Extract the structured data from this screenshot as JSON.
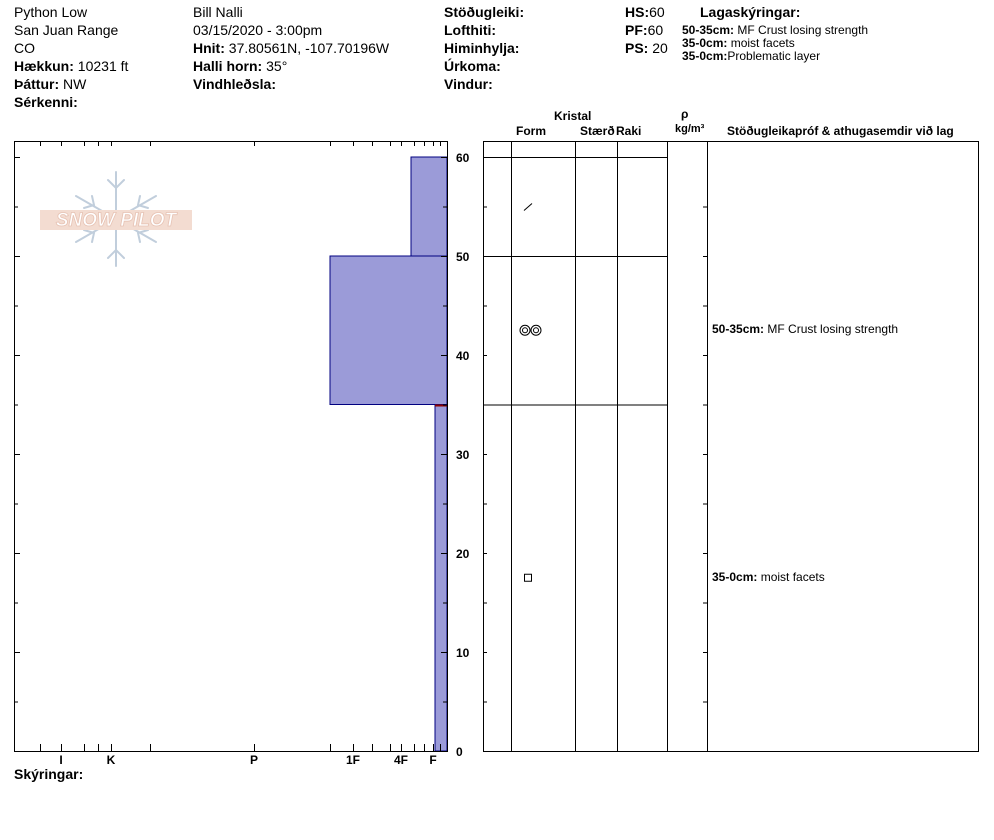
{
  "header": {
    "site_name": "Python Low",
    "range": "San Juan Range",
    "state": "CO",
    "elevation_label": "Hækkun:",
    "elevation_value": "10231 ft",
    "aspect_label": "Þáttur:",
    "aspect_value": "NW",
    "features_label": "Sérkenni:",
    "observer": "Bill Nalli",
    "datetime": "03/15/2020 - 3:00pm",
    "coords_label": "Hnit:",
    "coords_value": "37.80561N, -107.70196W",
    "slope_label": "Halli horn:",
    "slope_value": "35°",
    "wind_loading_label": "Vindhleðsla:",
    "stability_label": "Stöðugleiki:",
    "air_temp_label": "Lofthiti:",
    "sky_label": "Himinhylja:",
    "precip_label": "Úrkoma:",
    "wind_label": "Vindur:",
    "hs_label": "HS:",
    "hs_value": "60",
    "pf_label": "PF:",
    "pf_value": "60",
    "ps_label": "PS:",
    "ps_value": "20",
    "layer_notes_title": "Lagaskýringar:",
    "layer_notes": [
      {
        "range": "50-35cm:",
        "text": "MF Crust losing strength"
      },
      {
        "range": "35-0cm:",
        "text": "moist facets"
      },
      {
        "range": "35-0cm:",
        "text": "Problematic layer"
      }
    ]
  },
  "logo": {
    "text": "SNOW PILOT"
  },
  "columns": {
    "crystal": "Kristal",
    "form": "Form",
    "size": "Stærð",
    "moisture": "Raki",
    "rho": "ρ",
    "density_unit": "kg/m³",
    "tests": "Stöðugleikapróf & athugasemdir við lag"
  },
  "footer": {
    "comments_label": "Skýringar:"
  },
  "table_comments": [
    {
      "range": "50-35cm:",
      "text": "MF Crust losing strength",
      "depth": 42.5
    },
    {
      "range": "35-0cm:",
      "text": "moist facets",
      "depth": 17.5
    }
  ],
  "chart_data": {
    "type": "bar",
    "description_units": "hardness profile; y = snow height (cm), x = hand hardness index",
    "yaxis": {
      "min": 0,
      "max": 60,
      "ticks": [
        0,
        10,
        20,
        30,
        40,
        50,
        60
      ]
    },
    "hardness_ticks": [
      "I",
      "K",
      "P",
      "1F",
      "4F",
      "F"
    ],
    "layers": [
      {
        "top": 60,
        "bottom": 50,
        "hardness": "4F"
      },
      {
        "top": 50,
        "bottom": 35,
        "hardness": "1F-"
      },
      {
        "top": 35,
        "bottom": 0,
        "hardness": "F+"
      }
    ],
    "grain_forms": [
      {
        "depth": 55,
        "symbol": "precipitation-particle"
      },
      {
        "depth": 42.5,
        "symbol": "melt-freeze-crust"
      },
      {
        "depth": 17.5,
        "symbol": "faceted-crystal"
      }
    ],
    "layer_boundaries": [
      60,
      50,
      35
    ],
    "colors": {
      "fill": "#9b9bd8",
      "outline": "#000080",
      "marker": "#8b0000"
    }
  }
}
